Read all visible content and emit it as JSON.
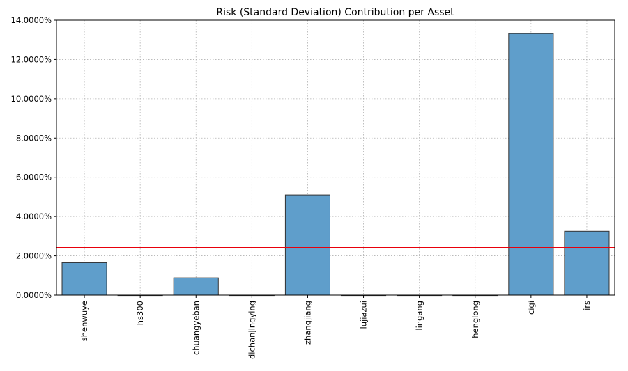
{
  "chart_data": {
    "type": "bar",
    "title": "Risk (Standard Deviation) Contribution per Asset",
    "xlabel": "",
    "ylabel": "",
    "categories": [
      "shenwuye",
      "hs300",
      "chuangyeban",
      "dichanjingying",
      "zhangjiang",
      "lujiazui",
      "lingang",
      "henglong",
      "cigi",
      "irs"
    ],
    "values": [
      1.65,
      0.0,
      0.88,
      0.0,
      5.1,
      0.0,
      0.0,
      0.0,
      13.32,
      3.25
    ],
    "value_unit": "%",
    "ylim": [
      0,
      14
    ],
    "yticks": [
      0,
      2,
      4,
      6,
      8,
      10,
      12,
      14
    ],
    "ytick_labels": [
      "0.0000%",
      "2.0000%",
      "4.0000%",
      "6.0000%",
      "8.0000%",
      "10.0000%",
      "12.0000%",
      "14.0000%"
    ],
    "reference_line": {
      "value": 2.42,
      "color": "#e8000b"
    },
    "bar_color": "#5f9ecb",
    "bar_edge_color": "#333333",
    "grid": true,
    "xtick_rotation": "vertical"
  }
}
